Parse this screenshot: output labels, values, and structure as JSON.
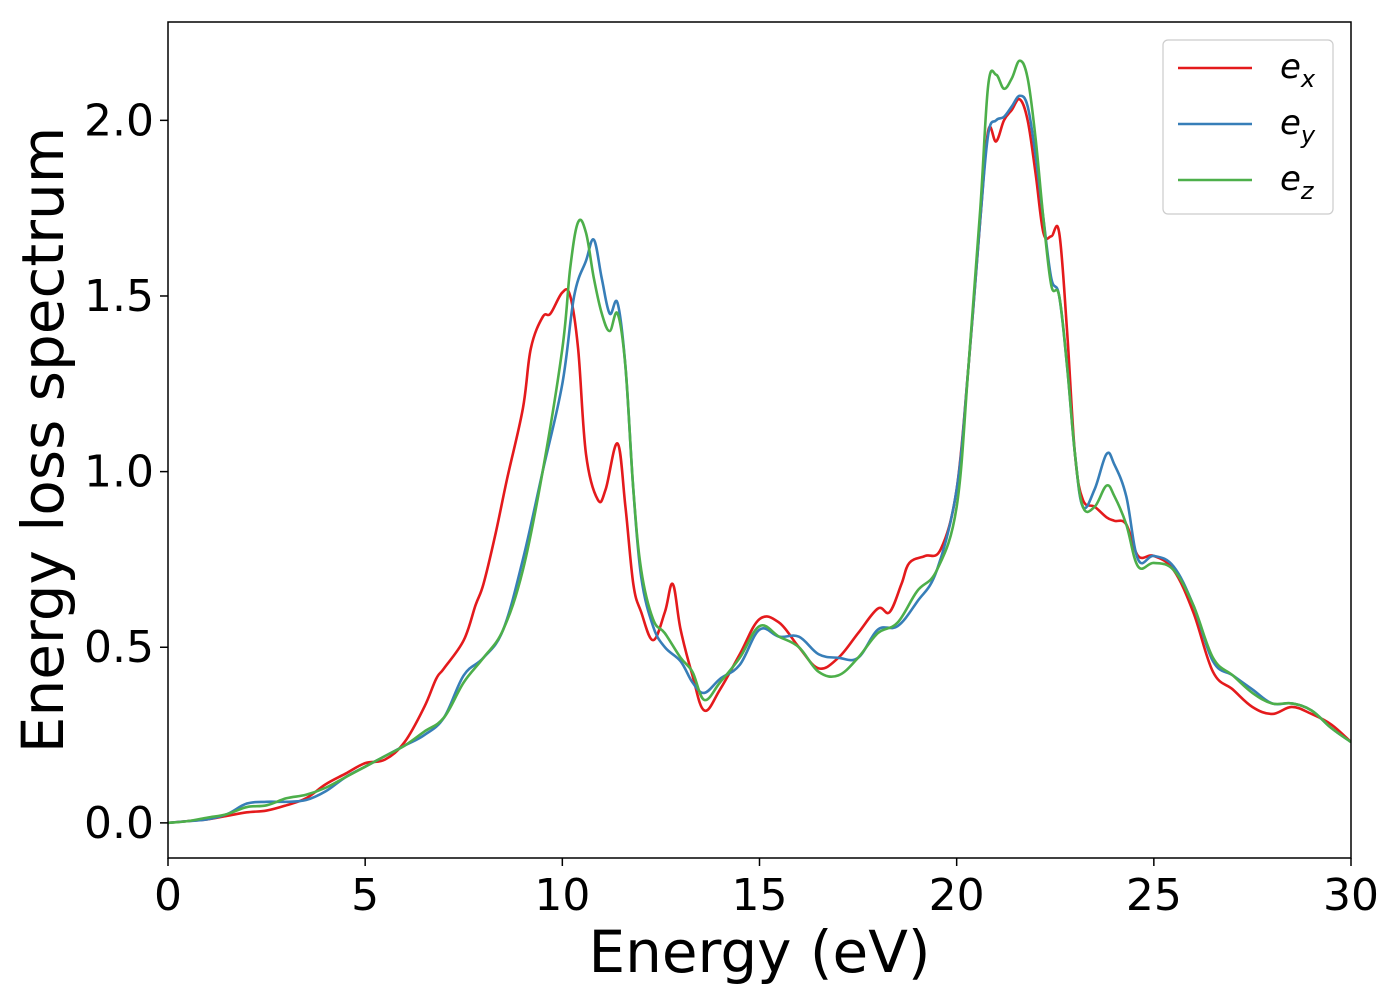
{
  "chart_data": {
    "type": "line",
    "title": "",
    "xlabel": "Energy (eV)",
    "ylabel": "Energy loss spectrum",
    "xlim": [
      0,
      30
    ],
    "ylim": [
      -0.1,
      2.28
    ],
    "xticks": [
      0,
      5,
      10,
      15,
      20,
      25,
      30
    ],
    "xtick_labels": [
      "0",
      "5",
      "10",
      "15",
      "20",
      "25",
      "30"
    ],
    "yticks": [
      0.0,
      0.5,
      1.0,
      1.5,
      2.0
    ],
    "ytick_labels": [
      "0.0",
      "0.5",
      "1.0",
      "1.5",
      "2.0"
    ],
    "grid": false,
    "legend_position": "top-right",
    "series": [
      {
        "name": "e_x",
        "label_base": "e",
        "label_sub": "x",
        "color": "#e41a1c",
        "x": [
          0,
          0.5,
          1,
          1.5,
          2,
          2.5,
          3,
          3.5,
          4,
          4.5,
          5,
          5.5,
          6,
          6.5,
          6.8,
          7,
          7.5,
          7.8,
          8,
          8.3,
          8.6,
          9,
          9.2,
          9.5,
          9.7,
          10,
          10.2,
          10.4,
          10.6,
          10.9,
          11.1,
          11.4,
          11.6,
          11.8,
          12,
          12.3,
          12.6,
          12.8,
          13,
          13.3,
          13.6,
          14,
          14.5,
          15,
          15.5,
          16,
          16.5,
          17,
          17.5,
          18,
          18.3,
          18.6,
          18.8,
          19.2,
          19.6,
          20,
          20.3,
          20.6,
          20.8,
          21,
          21.2,
          21.4,
          21.6,
          21.8,
          22,
          22.2,
          22.4,
          22.6,
          22.8,
          23,
          23.2,
          23.5,
          23.8,
          24,
          24.3,
          24.6,
          25,
          25.5,
          26,
          26.5,
          27,
          27.5,
          28,
          28.5,
          29,
          29.5,
          30
        ],
        "y": [
          0,
          0.005,
          0.01,
          0.02,
          0.03,
          0.035,
          0.05,
          0.07,
          0.11,
          0.14,
          0.17,
          0.18,
          0.23,
          0.33,
          0.41,
          0.44,
          0.52,
          0.62,
          0.68,
          0.82,
          0.98,
          1.18,
          1.35,
          1.44,
          1.45,
          1.51,
          1.5,
          1.35,
          1.05,
          0.92,
          0.95,
          1.08,
          0.9,
          0.68,
          0.6,
          0.52,
          0.6,
          0.68,
          0.55,
          0.42,
          0.32,
          0.38,
          0.48,
          0.58,
          0.57,
          0.5,
          0.44,
          0.47,
          0.54,
          0.61,
          0.6,
          0.68,
          0.74,
          0.76,
          0.78,
          0.95,
          1.3,
          1.72,
          1.97,
          1.94,
          2.0,
          2.03,
          2.06,
          2.0,
          1.85,
          1.68,
          1.67,
          1.68,
          1.4,
          1.05,
          0.92,
          0.9,
          0.87,
          0.86,
          0.85,
          0.76,
          0.76,
          0.72,
          0.6,
          0.43,
          0.38,
          0.33,
          0.31,
          0.33,
          0.31,
          0.28,
          0.23
        ]
      },
      {
        "name": "e_y",
        "label_base": "e",
        "label_sub": "y",
        "color": "#377eb8",
        "x": [
          0,
          0.5,
          1,
          1.5,
          2,
          2.5,
          3,
          3.5,
          4,
          4.5,
          5,
          5.5,
          6,
          6.5,
          7,
          7.5,
          8,
          8.5,
          9,
          9.5,
          10,
          10.3,
          10.6,
          10.8,
          11,
          11.2,
          11.4,
          11.6,
          11.8,
          12,
          12.3,
          12.6,
          13,
          13.3,
          13.6,
          14,
          14.5,
          15,
          15.5,
          16,
          16.5,
          17,
          17.5,
          18,
          18.5,
          19,
          19.5,
          20,
          20.3,
          20.6,
          20.8,
          21,
          21.2,
          21.4,
          21.6,
          21.8,
          22,
          22.2,
          22.4,
          22.6,
          22.8,
          23,
          23.2,
          23.5,
          23.8,
          24,
          24.3,
          24.6,
          25,
          25.5,
          26,
          26.5,
          27,
          27.5,
          28,
          28.5,
          29,
          29.5,
          30
        ],
        "y": [
          0,
          0.005,
          0.01,
          0.025,
          0.055,
          0.06,
          0.06,
          0.065,
          0.09,
          0.13,
          0.16,
          0.19,
          0.22,
          0.25,
          0.3,
          0.42,
          0.47,
          0.55,
          0.75,
          1.0,
          1.25,
          1.5,
          1.6,
          1.66,
          1.55,
          1.45,
          1.48,
          1.3,
          0.95,
          0.7,
          0.56,
          0.5,
          0.46,
          0.4,
          0.37,
          0.41,
          0.45,
          0.55,
          0.53,
          0.53,
          0.48,
          0.47,
          0.47,
          0.55,
          0.56,
          0.63,
          0.72,
          0.95,
          1.3,
          1.72,
          1.96,
          2.0,
          2.01,
          2.04,
          2.07,
          2.04,
          1.9,
          1.72,
          1.55,
          1.5,
          1.3,
          1.05,
          0.9,
          0.95,
          1.05,
          1.02,
          0.93,
          0.75,
          0.76,
          0.73,
          0.62,
          0.46,
          0.42,
          0.38,
          0.34,
          0.34,
          0.32,
          0.27,
          0.23
        ]
      },
      {
        "name": "e_z",
        "label_base": "e",
        "label_sub": "z",
        "color": "#4daf4a",
        "x": [
          0,
          0.5,
          1,
          1.5,
          2,
          2.5,
          3,
          3.5,
          4,
          4.5,
          5,
          5.5,
          6,
          6.5,
          7,
          7.5,
          8,
          8.5,
          9,
          9.5,
          10,
          10.2,
          10.4,
          10.6,
          10.8,
          11,
          11.2,
          11.4,
          11.6,
          11.8,
          12,
          12.3,
          12.6,
          13,
          13.3,
          13.6,
          14,
          14.5,
          15,
          15.5,
          16,
          16.5,
          17,
          17.5,
          18,
          18.5,
          19,
          19.5,
          20,
          20.3,
          20.6,
          20.8,
          21,
          21.2,
          21.4,
          21.6,
          21.8,
          22,
          22.2,
          22.4,
          22.6,
          22.8,
          23,
          23.2,
          23.5,
          23.8,
          24,
          24.3,
          24.6,
          25,
          25.5,
          26,
          26.5,
          27,
          27.5,
          28,
          28.5,
          29,
          29.5,
          30
        ],
        "y": [
          0,
          0.005,
          0.015,
          0.025,
          0.045,
          0.05,
          0.07,
          0.08,
          0.1,
          0.13,
          0.16,
          0.19,
          0.22,
          0.26,
          0.3,
          0.4,
          0.47,
          0.55,
          0.72,
          1.0,
          1.35,
          1.58,
          1.71,
          1.68,
          1.55,
          1.45,
          1.4,
          1.45,
          1.3,
          0.95,
          0.72,
          0.58,
          0.54,
          0.47,
          0.43,
          0.35,
          0.4,
          0.47,
          0.56,
          0.53,
          0.5,
          0.43,
          0.42,
          0.47,
          0.54,
          0.57,
          0.66,
          0.72,
          0.9,
          1.3,
          1.75,
          2.1,
          2.13,
          2.09,
          2.12,
          2.17,
          2.12,
          1.95,
          1.72,
          1.53,
          1.5,
          1.3,
          1.05,
          0.9,
          0.9,
          0.96,
          0.93,
          0.85,
          0.73,
          0.74,
          0.72,
          0.62,
          0.47,
          0.42,
          0.37,
          0.34,
          0.34,
          0.32,
          0.27,
          0.23
        ]
      }
    ]
  }
}
